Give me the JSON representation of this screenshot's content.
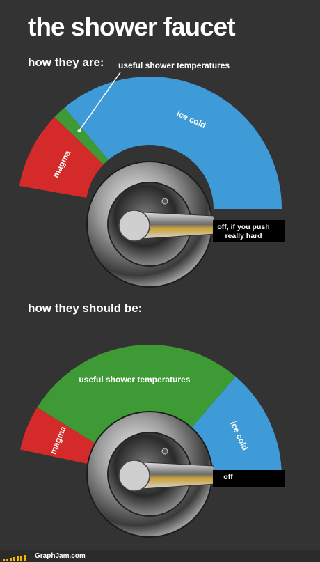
{
  "title": "the shower faucet",
  "footer": {
    "brand": "GraphJam.com",
    "logo": "bar-logo"
  },
  "colors": {
    "background": "#333333",
    "red": "#d52a2a",
    "green": "#3e9a35",
    "blue": "#3e9bd8",
    "white": "#ffffff"
  },
  "chart_data": [
    {
      "type": "pie",
      "subtitle": "how they are:",
      "segments": [
        {
          "label": "magma",
          "value": 17,
          "color": "#d52a2a"
        },
        {
          "label": "useful shower temperatures",
          "value": 3,
          "color": "#3e9a35"
        },
        {
          "label": "ice cold",
          "value": 65,
          "color": "#3e9bd8"
        }
      ],
      "off_label": [
        "off, if you push",
        "really hard"
      ]
    },
    {
      "type": "pie",
      "subtitle": "how they should be:",
      "segments": [
        {
          "label": "magma",
          "value": 10,
          "color": "#d52a2a"
        },
        {
          "label": "useful shower temperatures",
          "value": 50,
          "color": "#3e9a35"
        },
        {
          "label": "ice cold",
          "value": 25,
          "color": "#3e9bd8"
        }
      ],
      "off_label": [
        "off"
      ]
    }
  ]
}
